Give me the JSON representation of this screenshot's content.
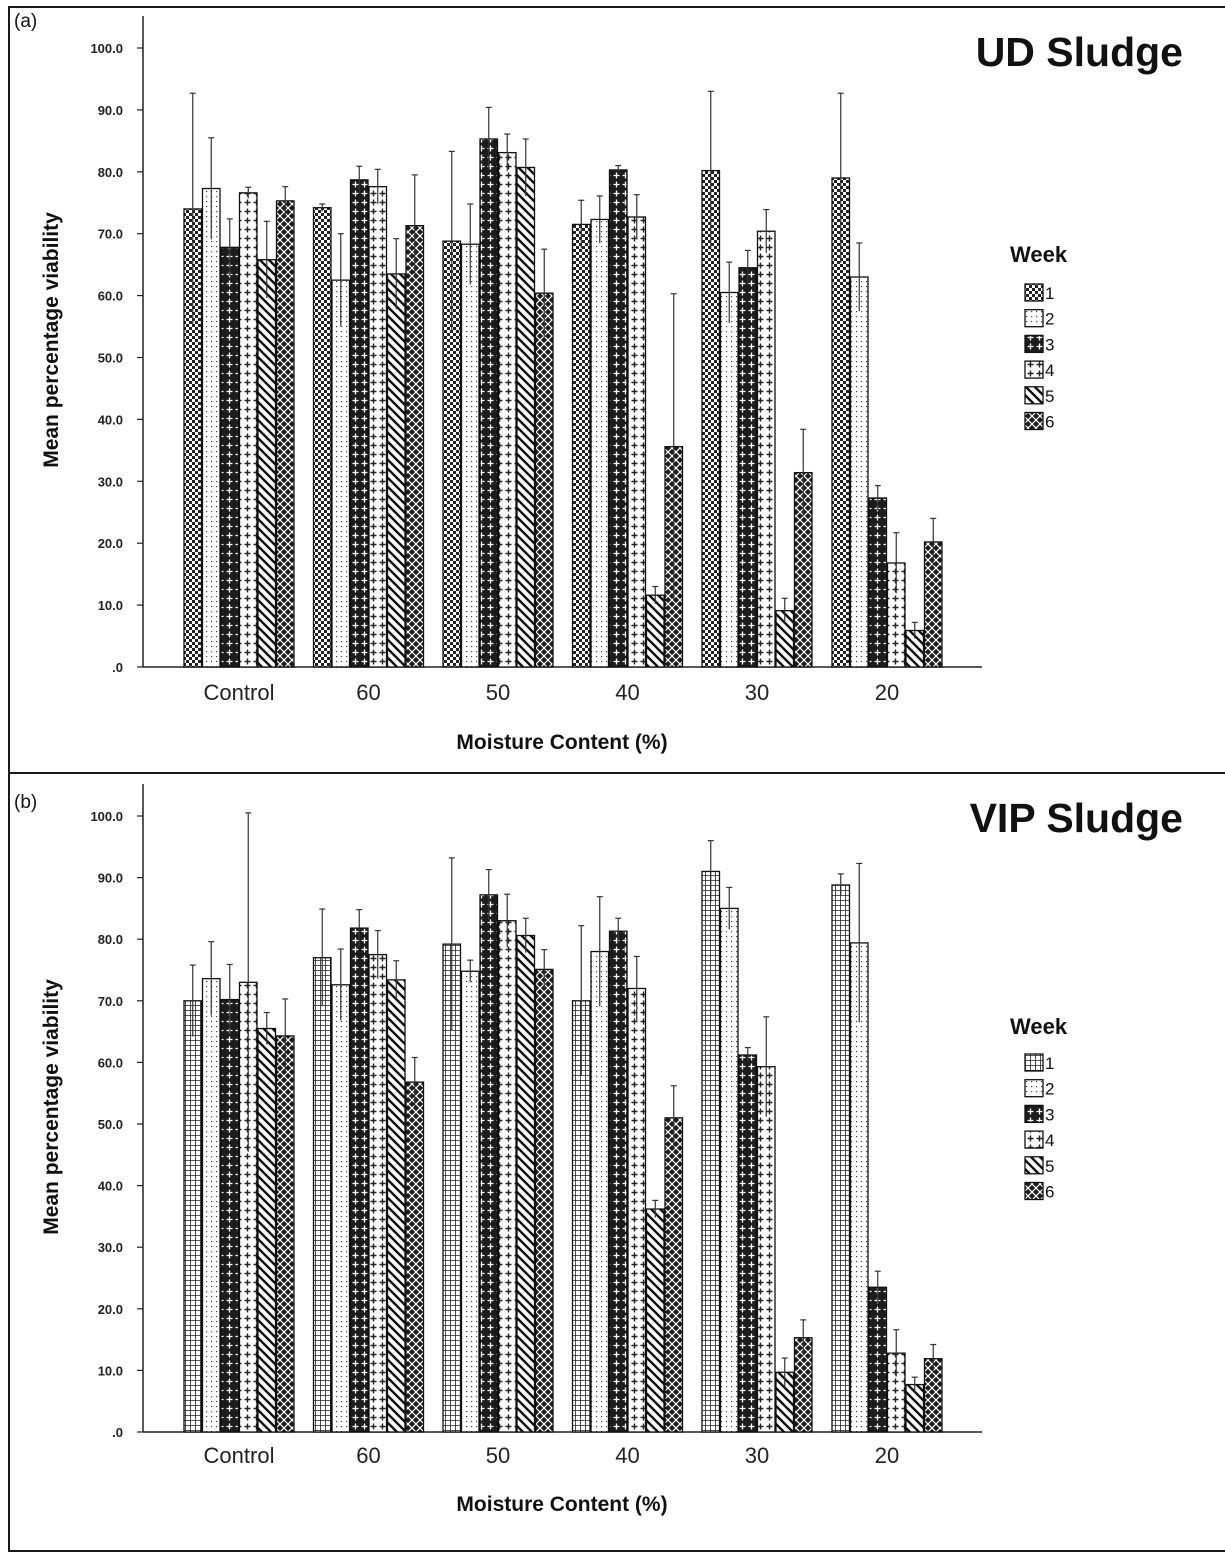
{
  "chart_data": [
    {
      "type": "bar",
      "panel_label": "(a)",
      "title": "UD Sludge",
      "xlabel": "Moisture Content (%)",
      "ylabel": "Mean percentage viability",
      "ylim": [
        0,
        100
      ],
      "yticks": [
        "100.0",
        "90.0",
        "80.0",
        "70.0",
        "60.0",
        "50.0",
        "40.0",
        "30.0",
        "20.0",
        "10.0",
        ".0"
      ],
      "categories": [
        "Control",
        "60",
        "50",
        "40",
        "30",
        "20"
      ],
      "legend_title": "Week",
      "legend_position": "right",
      "grid": false,
      "error_bars": true,
      "series": [
        {
          "name": "1",
          "pattern": "checker",
          "values": [
            74.0,
            74.2,
            68.8,
            71.5,
            80.2,
            79.0
          ],
          "errors": [
            18.7,
            0.6,
            14.5,
            3.9,
            12.8,
            13.7
          ]
        },
        {
          "name": "2",
          "pattern": "dots",
          "values": [
            77.3,
            62.5,
            68.3,
            72.3,
            60.5,
            63.0
          ],
          "errors": [
            8.2,
            7.5,
            6.5,
            3.8,
            4.9,
            5.5
          ]
        },
        {
          "name": "3",
          "pattern": "dark-plus",
          "values": [
            67.8,
            78.7,
            85.3,
            80.3,
            64.5,
            27.3
          ],
          "errors": [
            4.6,
            2.2,
            5.1,
            0.7,
            2.8,
            2.0
          ]
        },
        {
          "name": "4",
          "pattern": "light-plus",
          "values": [
            76.6,
            77.6,
            83.1,
            72.7,
            70.4,
            16.8
          ],
          "errors": [
            0.9,
            2.8,
            3.0,
            3.6,
            3.5,
            4.9
          ]
        },
        {
          "name": "5",
          "pattern": "diagonal",
          "values": [
            65.8,
            63.5,
            80.7,
            11.6,
            9.1,
            5.9
          ],
          "errors": [
            6.2,
            5.7,
            4.6,
            1.4,
            2.0,
            1.3
          ]
        },
        {
          "name": "6",
          "pattern": "dark-cross",
          "values": [
            75.3,
            71.3,
            60.4,
            35.6,
            31.4,
            20.2
          ],
          "errors": [
            2.3,
            8.2,
            7.1,
            24.7,
            7.0,
            3.8
          ]
        }
      ]
    },
    {
      "type": "bar",
      "panel_label": "(b)",
      "title": "VIP Sludge",
      "xlabel": "Moisture Content (%)",
      "ylabel": "Mean percentage viability",
      "ylim": [
        0,
        100
      ],
      "yticks": [
        "100.0",
        "90.0",
        "80.0",
        "70.0",
        "60.0",
        "50.0",
        "40.0",
        "30.0",
        "20.0",
        "10.0",
        ".0"
      ],
      "categories": [
        "Control",
        "60",
        "50",
        "40",
        "30",
        "20"
      ],
      "legend_title": "Week",
      "legend_position": "right",
      "grid": false,
      "error_bars": true,
      "series": [
        {
          "name": "1",
          "pattern": "grid",
          "values": [
            70.0,
            77.0,
            79.2,
            70.0,
            91.0,
            88.8
          ],
          "errors": [
            5.8,
            7.9,
            14.0,
            12.2,
            5.0,
            1.8
          ]
        },
        {
          "name": "2",
          "pattern": "dots",
          "values": [
            73.6,
            72.6,
            74.8,
            78.0,
            85.0,
            79.4
          ],
          "errors": [
            6.0,
            5.8,
            1.8,
            8.9,
            3.4,
            12.9
          ]
        },
        {
          "name": "3",
          "pattern": "dark-plus",
          "values": [
            70.2,
            81.8,
            87.2,
            81.3,
            61.2,
            23.5
          ],
          "errors": [
            5.7,
            3.0,
            4.1,
            2.1,
            1.2,
            2.6
          ]
        },
        {
          "name": "4",
          "pattern": "light-plus",
          "values": [
            73.0,
            77.5,
            83.0,
            72.0,
            59.3,
            12.8
          ],
          "errors": [
            27.5,
            3.9,
            4.3,
            5.2,
            8.1,
            3.8
          ]
        },
        {
          "name": "5",
          "pattern": "diagonal",
          "values": [
            65.5,
            73.4,
            80.6,
            36.2,
            9.7,
            7.7
          ],
          "errors": [
            2.6,
            3.1,
            2.8,
            1.4,
            2.3,
            1.2
          ]
        },
        {
          "name": "6",
          "pattern": "dark-cross",
          "values": [
            64.3,
            56.8,
            75.1,
            51.0,
            15.3,
            11.9
          ],
          "errors": [
            6.0,
            4.0,
            3.2,
            5.2,
            2.9,
            2.3
          ]
        }
      ]
    }
  ]
}
